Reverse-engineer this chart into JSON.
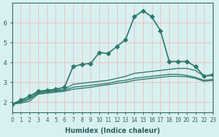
{
  "xlabel": "Humidex (Indice chaleur)",
  "ylabel": "",
  "bg_color": "#d8f0f0",
  "line_color": "#2d7a6e",
  "grid_color": "#f0b0b0",
  "axis_color": "#2d6060",
  "xlim": [
    0,
    23
  ],
  "ylim": [
    1.5,
    7.0
  ],
  "xticks": [
    0,
    1,
    2,
    3,
    4,
    5,
    6,
    7,
    8,
    9,
    10,
    11,
    12,
    13,
    14,
    15,
    16,
    17,
    18,
    19,
    20,
    21,
    22,
    23
  ],
  "yticks": [
    2,
    3,
    4,
    5,
    6
  ],
  "series": [
    {
      "x": [
        0,
        1,
        2,
        3,
        4,
        5,
        6,
        7,
        8,
        9,
        10,
        11,
        12,
        13,
        14,
        15,
        16,
        17,
        18,
        19,
        20,
        21,
        22,
        23
      ],
      "y": [
        1.9,
        2.1,
        2.3,
        2.55,
        2.6,
        2.65,
        2.75,
        3.8,
        3.9,
        3.95,
        4.5,
        4.45,
        4.8,
        5.15,
        6.3,
        6.6,
        6.3,
        5.6,
        4.05,
        4.05,
        4.05,
        3.8,
        3.3,
        3.4
      ],
      "marker": "D",
      "markersize": 3,
      "linewidth": 1.3
    },
    {
      "x": [
        0,
        1,
        2,
        3,
        4,
        5,
        6,
        7,
        8,
        9,
        10,
        11,
        12,
        13,
        14,
        15,
        16,
        17,
        18,
        19,
        20,
        21,
        22,
        23
      ],
      "y": [
        1.9,
        2.05,
        2.2,
        2.5,
        2.55,
        2.6,
        2.65,
        2.9,
        2.95,
        3.0,
        3.05,
        3.1,
        3.2,
        3.3,
        3.45,
        3.5,
        3.55,
        3.6,
        3.65,
        3.7,
        3.7,
        3.6,
        3.3,
        3.35
      ],
      "marker": null,
      "markersize": 0,
      "linewidth": 1.0
    },
    {
      "x": [
        0,
        1,
        2,
        3,
        4,
        5,
        6,
        7,
        8,
        9,
        10,
        11,
        12,
        13,
        14,
        15,
        16,
        17,
        18,
        19,
        20,
        21,
        22,
        23
      ],
      "y": [
        1.9,
        2.0,
        2.15,
        2.45,
        2.5,
        2.55,
        2.6,
        2.75,
        2.8,
        2.85,
        2.9,
        2.95,
        3.05,
        3.1,
        3.2,
        3.25,
        3.3,
        3.35,
        3.4,
        3.4,
        3.35,
        3.25,
        3.1,
        3.15
      ],
      "marker": null,
      "markersize": 0,
      "linewidth": 1.0
    },
    {
      "x": [
        0,
        1,
        2,
        3,
        4,
        5,
        6,
        7,
        8,
        9,
        10,
        11,
        12,
        13,
        14,
        15,
        16,
        17,
        18,
        19,
        20,
        21,
        22,
        23
      ],
      "y": [
        1.9,
        1.95,
        2.05,
        2.4,
        2.45,
        2.5,
        2.55,
        2.65,
        2.7,
        2.75,
        2.82,
        2.88,
        2.95,
        3.0,
        3.1,
        3.15,
        3.2,
        3.25,
        3.3,
        3.3,
        3.28,
        3.2,
        3.05,
        3.1
      ],
      "marker": null,
      "markersize": 0,
      "linewidth": 1.0
    }
  ]
}
